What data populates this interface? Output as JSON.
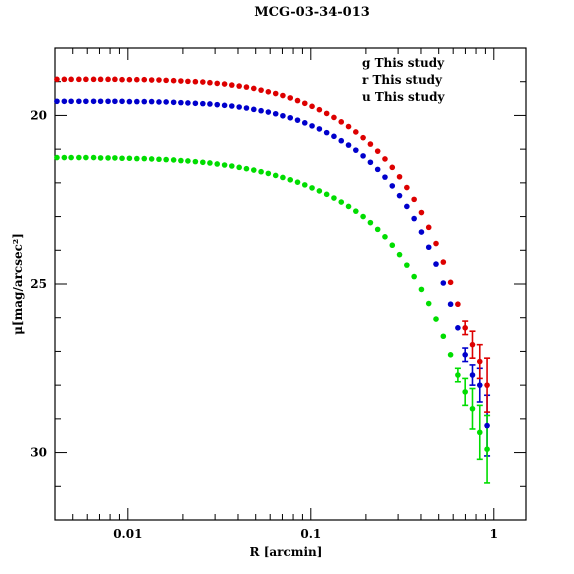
{
  "chart_data": {
    "type": "scatter",
    "title": "MCG-03-34-013",
    "xlabel": "R [arcmin]",
    "ylabel": "μ[mag/arcsec²]",
    "x_scale": "log",
    "xlim": [
      0.004,
      1.5
    ],
    "ylim": [
      32.0,
      18.0
    ],
    "x_ticks": [
      {
        "value": 0.01,
        "label": "0.01"
      },
      {
        "value": 0.1,
        "label": "0.1"
      },
      {
        "value": 1,
        "label": "1"
      }
    ],
    "y_ticks": [
      {
        "value": 20,
        "label": "20"
      },
      {
        "value": 25,
        "label": "25"
      },
      {
        "value": 30,
        "label": "30"
      }
    ],
    "legend_position": "top-right",
    "series": [
      {
        "name": "g  This study",
        "color": "#0000cc",
        "r": [
          0.0041,
          0.0045,
          0.0049,
          0.0054,
          0.0059,
          0.0065,
          0.0071,
          0.0078,
          0.0085,
          0.0093,
          0.0102,
          0.0112,
          0.0123,
          0.0135,
          0.0148,
          0.0162,
          0.0178,
          0.0195,
          0.0213,
          0.0234,
          0.0257,
          0.0281,
          0.0308,
          0.0338,
          0.037,
          0.0406,
          0.0445,
          0.0488,
          0.0535,
          0.0586,
          0.0643,
          0.0704,
          0.0772,
          0.0846,
          0.0927,
          0.1016,
          0.1114,
          0.1221,
          0.1338,
          0.1467,
          0.1608,
          0.1762,
          0.1931,
          0.2117,
          0.232,
          0.2543,
          0.2788,
          0.3055,
          0.3349,
          0.3671,
          0.4024,
          0.441,
          0.4834,
          0.5299,
          0.5808,
          0.6366,
          0.6978,
          0.7649,
          0.8384,
          0.919
        ],
        "mu": [
          19.58,
          19.58,
          19.58,
          19.58,
          19.58,
          19.58,
          19.58,
          19.58,
          19.58,
          19.58,
          19.59,
          19.59,
          19.59,
          19.59,
          19.6,
          19.6,
          19.61,
          19.62,
          19.63,
          19.64,
          19.65,
          19.66,
          19.68,
          19.7,
          19.72,
          19.75,
          19.78,
          19.82,
          19.86,
          19.9,
          19.95,
          20.01,
          20.07,
          20.14,
          20.22,
          20.31,
          20.4,
          20.51,
          20.62,
          20.75,
          20.88,
          21.03,
          21.2,
          21.39,
          21.6,
          21.83,
          22.09,
          22.38,
          22.7,
          23.06,
          23.46,
          23.91,
          24.41,
          24.97,
          25.6,
          26.3,
          27.1,
          27.7,
          28.0,
          29.2
        ],
        "err": [
          0,
          0,
          0,
          0,
          0,
          0,
          0,
          0,
          0,
          0,
          0,
          0,
          0,
          0,
          0,
          0,
          0,
          0,
          0,
          0,
          0,
          0,
          0,
          0,
          0,
          0,
          0,
          0,
          0,
          0,
          0,
          0,
          0,
          0,
          0,
          0,
          0,
          0,
          0,
          0,
          0,
          0,
          0,
          0,
          0,
          0,
          0,
          0,
          0,
          0,
          0.02,
          0.03,
          0.04,
          0.05,
          0.07,
          0.12,
          0.2,
          0.3,
          0.5,
          0.9
        ]
      },
      {
        "name": "r  This study",
        "color": "#dd0000",
        "r": [
          0.0041,
          0.0045,
          0.0049,
          0.0054,
          0.0059,
          0.0065,
          0.0071,
          0.0078,
          0.0085,
          0.0093,
          0.0102,
          0.0112,
          0.0123,
          0.0135,
          0.0148,
          0.0162,
          0.0178,
          0.0195,
          0.0213,
          0.0234,
          0.0257,
          0.0281,
          0.0308,
          0.0338,
          0.037,
          0.0406,
          0.0445,
          0.0488,
          0.0535,
          0.0586,
          0.0643,
          0.0704,
          0.0772,
          0.0846,
          0.0927,
          0.1016,
          0.1114,
          0.1221,
          0.1338,
          0.1467,
          0.1608,
          0.1762,
          0.1931,
          0.2117,
          0.232,
          0.2543,
          0.2788,
          0.3055,
          0.3349,
          0.3671,
          0.4024,
          0.441,
          0.4834,
          0.5299,
          0.5808,
          0.6366,
          0.6978,
          0.7649,
          0.8384,
          0.919
        ],
        "mu": [
          18.93,
          18.93,
          18.93,
          18.93,
          18.93,
          18.93,
          18.93,
          18.93,
          18.93,
          18.94,
          18.94,
          18.94,
          18.94,
          18.95,
          18.95,
          18.96,
          18.97,
          18.98,
          18.99,
          19.0,
          19.01,
          19.03,
          19.05,
          19.07,
          19.1,
          19.13,
          19.16,
          19.2,
          19.25,
          19.3,
          19.35,
          19.41,
          19.48,
          19.56,
          19.64,
          19.73,
          19.83,
          19.94,
          20.06,
          20.19,
          20.33,
          20.49,
          20.66,
          20.85,
          21.06,
          21.29,
          21.54,
          21.82,
          22.14,
          22.49,
          22.88,
          23.32,
          23.8,
          24.35,
          24.95,
          25.6,
          26.3,
          26.8,
          27.3,
          28.0
        ],
        "err": [
          0,
          0,
          0,
          0,
          0,
          0,
          0,
          0,
          0,
          0,
          0,
          0,
          0,
          0,
          0,
          0,
          0,
          0,
          0,
          0,
          0,
          0,
          0,
          0,
          0,
          0,
          0,
          0,
          0,
          0,
          0,
          0,
          0,
          0,
          0,
          0,
          0,
          0,
          0,
          0,
          0,
          0,
          0,
          0,
          0,
          0,
          0,
          0,
          0,
          0,
          0.02,
          0.03,
          0.04,
          0.05,
          0.07,
          0.1,
          0.2,
          0.4,
          0.5,
          0.8
        ]
      },
      {
        "name": "u  This study",
        "color": "#00dd00",
        "r": [
          0.0041,
          0.0045,
          0.0049,
          0.0054,
          0.0059,
          0.0065,
          0.0071,
          0.0078,
          0.0085,
          0.0093,
          0.0102,
          0.0112,
          0.0123,
          0.0135,
          0.0148,
          0.0162,
          0.0178,
          0.0195,
          0.0213,
          0.0234,
          0.0257,
          0.0281,
          0.0308,
          0.0338,
          0.037,
          0.0406,
          0.0445,
          0.0488,
          0.0535,
          0.0586,
          0.0643,
          0.0704,
          0.0772,
          0.0846,
          0.0927,
          0.1016,
          0.1114,
          0.1221,
          0.1338,
          0.1467,
          0.1608,
          0.1762,
          0.1931,
          0.2117,
          0.232,
          0.2543,
          0.2788,
          0.3055,
          0.3349,
          0.3671,
          0.4024,
          0.441,
          0.4834,
          0.5299,
          0.5808,
          0.6366,
          0.6978,
          0.7649,
          0.8384,
          0.919
        ],
        "mu": [
          21.25,
          21.25,
          21.25,
          21.25,
          21.25,
          21.25,
          21.26,
          21.26,
          21.26,
          21.27,
          21.27,
          21.28,
          21.28,
          21.29,
          21.3,
          21.31,
          21.32,
          21.34,
          21.35,
          21.37,
          21.39,
          21.41,
          21.44,
          21.47,
          21.5,
          21.54,
          21.58,
          21.62,
          21.67,
          21.72,
          21.78,
          21.84,
          21.91,
          21.98,
          22.06,
          22.15,
          22.24,
          22.34,
          22.45,
          22.57,
          22.7,
          22.84,
          23.0,
          23.18,
          23.38,
          23.6,
          23.85,
          24.13,
          24.44,
          24.78,
          25.16,
          25.58,
          26.04,
          26.55,
          27.1,
          27.7,
          28.2,
          28.7,
          29.4,
          29.9
        ],
        "err": [
          0,
          0,
          0,
          0,
          0,
          0,
          0,
          0,
          0,
          0,
          0,
          0,
          0,
          0,
          0,
          0,
          0,
          0,
          0,
          0,
          0,
          0,
          0,
          0,
          0,
          0,
          0,
          0,
          0,
          0,
          0,
          0,
          0,
          0,
          0,
          0,
          0,
          0,
          0,
          0,
          0,
          0,
          0,
          0,
          0,
          0,
          0,
          0,
          0,
          0,
          0.03,
          0.04,
          0.06,
          0.09,
          0.13,
          0.2,
          0.4,
          0.6,
          0.8,
          1.0
        ]
      }
    ]
  }
}
